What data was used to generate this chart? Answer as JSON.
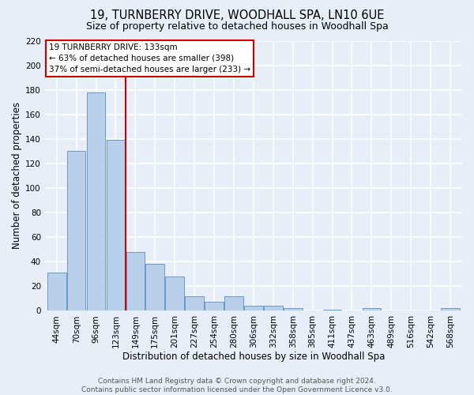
{
  "title": "19, TURNBERRY DRIVE, WOODHALL SPA, LN10 6UE",
  "subtitle": "Size of property relative to detached houses in Woodhall Spa",
  "xlabel": "Distribution of detached houses by size in Woodhall Spa",
  "ylabel": "Number of detached properties",
  "bar_values": [
    31,
    130,
    178,
    139,
    48,
    38,
    28,
    12,
    7,
    12,
    4,
    4,
    2,
    0,
    1,
    0,
    2,
    0,
    0,
    0,
    2
  ],
  "bin_labels": [
    "44sqm",
    "70sqm",
    "96sqm",
    "123sqm",
    "149sqm",
    "175sqm",
    "201sqm",
    "227sqm",
    "254sqm",
    "280sqm",
    "306sqm",
    "332sqm",
    "358sqm",
    "385sqm",
    "411sqm",
    "437sqm",
    "463sqm",
    "489sqm",
    "516sqm",
    "542sqm",
    "568sqm"
  ],
  "bar_color": "#b8d0ea",
  "bar_edge_color": "#6699cc",
  "bg_color": "#e8eef8",
  "grid_color": "#ffffff",
  "vline_x": 3.5,
  "vline_color": "#cc0000",
  "annotation_text": "19 TURNBERRY DRIVE: 133sqm\n← 63% of detached houses are smaller (398)\n37% of semi-detached houses are larger (233) →",
  "annotation_box_color": "#ffffff",
  "annotation_box_edge": "#cc0000",
  "footer_text": "Contains HM Land Registry data © Crown copyright and database right 2024.\nContains public sector information licensed under the Open Government Licence v3.0.",
  "ylim": [
    0,
    220
  ],
  "title_fontsize": 10.5,
  "subtitle_fontsize": 9,
  "axis_fontsize": 8.5,
  "tick_fontsize": 7.5,
  "footer_fontsize": 6.5,
  "annotation_fontsize": 7.5
}
